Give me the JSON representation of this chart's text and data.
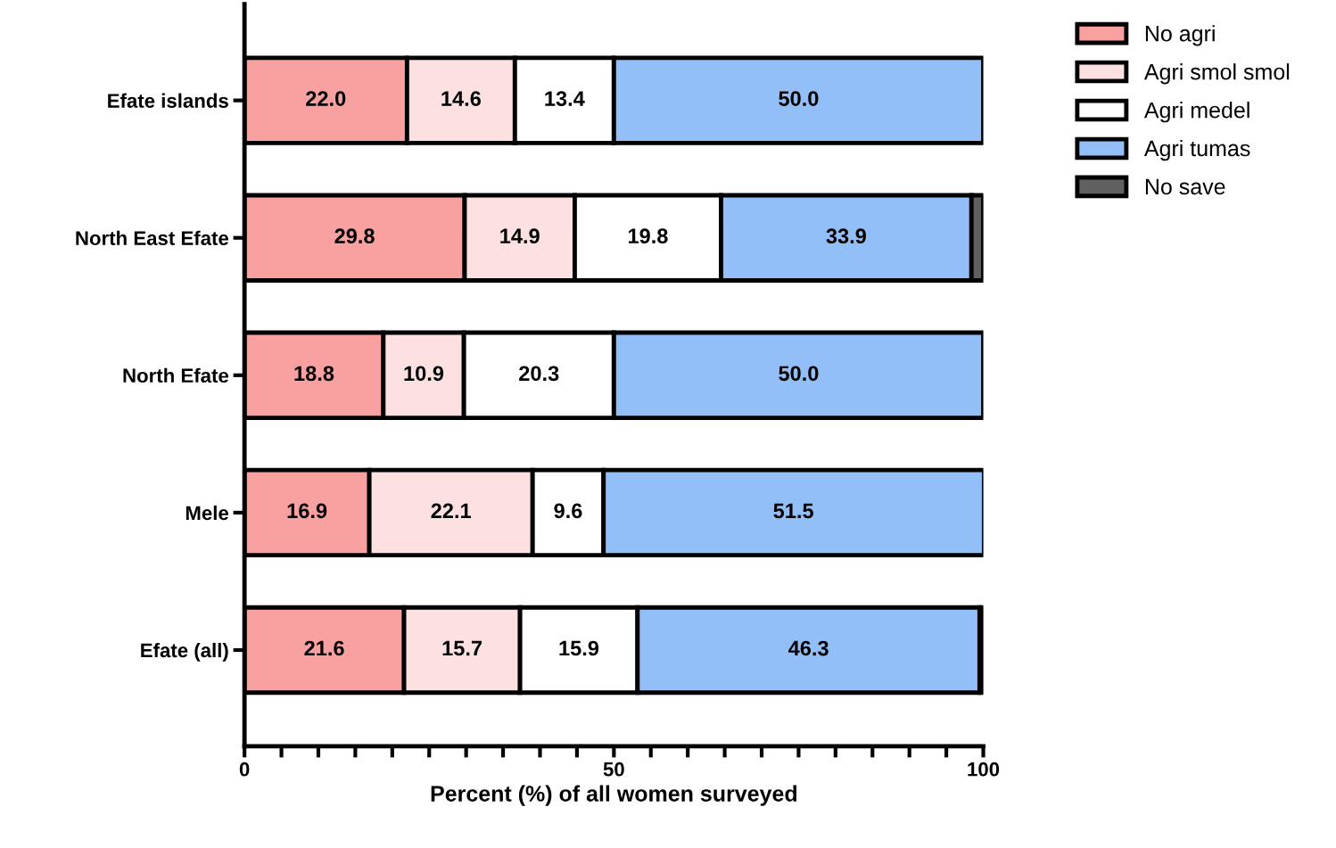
{
  "chart_data": {
    "type": "bar",
    "orientation": "horizontal",
    "stacked": true,
    "xlabel": "Percent (%) of all women surveyed",
    "categories": [
      "Efate islands",
      "North East Efate",
      "North Efate",
      "Mele",
      "Efate (all)"
    ],
    "series": [
      {
        "name": "No agri",
        "color": "#f9a0a0",
        "values": [
          22.0,
          29.8,
          18.8,
          16.9,
          21.6
        ],
        "value_labels": [
          "22.0",
          "29.8",
          "18.8",
          "16.9",
          "21.6"
        ]
      },
      {
        "name": "Agri smol smol",
        "color": "#fde0e0",
        "values": [
          14.6,
          14.9,
          10.9,
          22.1,
          15.7
        ],
        "value_labels": [
          "14.6",
          "14.9",
          "10.9",
          "22.1",
          "15.7"
        ]
      },
      {
        "name": "Agri medel",
        "color": "#ffffff",
        "values": [
          13.4,
          19.8,
          20.3,
          9.6,
          15.9
        ],
        "value_labels": [
          "13.4",
          "19.8",
          "20.3",
          "9.6",
          "15.9"
        ]
      },
      {
        "name": "Agri tumas",
        "color": "#92bff8",
        "values": [
          50.0,
          33.9,
          50.0,
          51.5,
          46.3
        ],
        "value_labels": [
          "50.0",
          "33.9",
          "50.0",
          "51.5",
          "46.3"
        ]
      },
      {
        "name": "No save",
        "color": "#606060",
        "values": [
          null,
          1.6,
          null,
          null,
          0.5
        ],
        "value_labels": [
          null,
          null,
          null,
          null,
          null
        ]
      }
    ],
    "xlim": [
      0,
      100
    ],
    "xticks": [
      0,
      {
        "value": 5,
        "label": null
      },
      {
        "value": 10,
        "label": null
      },
      {
        "value": 15,
        "label": null
      },
      {
        "value": 20,
        "label": null
      },
      {
        "value": 25,
        "label": null
      },
      {
        "value": 30,
        "label": null
      },
      {
        "value": 35,
        "label": null
      },
      {
        "value": 40,
        "label": null
      },
      {
        "value": 45,
        "label": null
      },
      50,
      {
        "value": 55,
        "label": null
      },
      {
        "value": 60,
        "label": null
      },
      {
        "value": 65,
        "label": null
      },
      {
        "value": 70,
        "label": null
      },
      {
        "value": 75,
        "label": null
      },
      {
        "value": 80,
        "label": null
      },
      {
        "value": 85,
        "label": null
      },
      {
        "value": 90,
        "label": null
      },
      {
        "value": 95,
        "label": null
      },
      100
    ],
    "grid": false,
    "legend": "top right"
  }
}
